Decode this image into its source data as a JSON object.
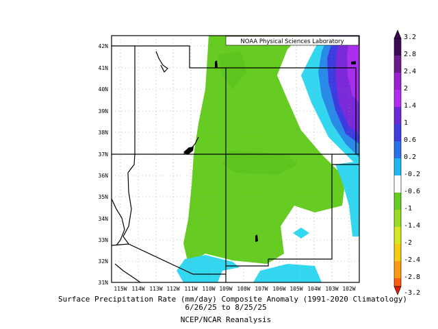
{
  "credit": "NOAA Physical Sciences Laboratory",
  "caption": {
    "line1": "Surface Precipitation Rate (mm/day) Composite Anomaly (1991-2020 Climatology)",
    "line2": "6/26/25 to 8/25/25",
    "line3": "NCEP/NCAR Reanalysis"
  },
  "map": {
    "lon_range": [
      -115.5,
      -101.5
    ],
    "lat_range": [
      31,
      42.5
    ],
    "lat_labels": [
      "42N",
      "41N",
      "40N",
      "39N",
      "38N",
      "37N",
      "36N",
      "35N",
      "34N",
      "33N",
      "32N",
      "31N"
    ],
    "lon_labels": [
      "115W",
      "114W",
      "113W",
      "112W",
      "111W",
      "110W",
      "109W",
      "108W",
      "107W",
      "106W",
      "105W",
      "104W",
      "103W",
      "102W"
    ]
  },
  "colorbar": {
    "labels": [
      "3.2",
      "2.8",
      "2.4",
      "2",
      "1.4",
      "1",
      "0.6",
      "0.2",
      "-0.2",
      "-0.6",
      "-1",
      "-1.4",
      "-2",
      "-2.4",
      "-2.8",
      "-3.2"
    ],
    "colors": [
      "#3a0a55",
      "#6a1a8c",
      "#9a1fd0",
      "#b02cf0",
      "#6a2ad8",
      "#3c3ce0",
      "#2a70e8",
      "#20b8f0",
      "#ffffff",
      "#66cc22",
      "#99dd22",
      "#d8e820",
      "#f5cc10",
      "#ff9a10",
      "#ff5a10",
      "#e81a10"
    ]
  }
}
